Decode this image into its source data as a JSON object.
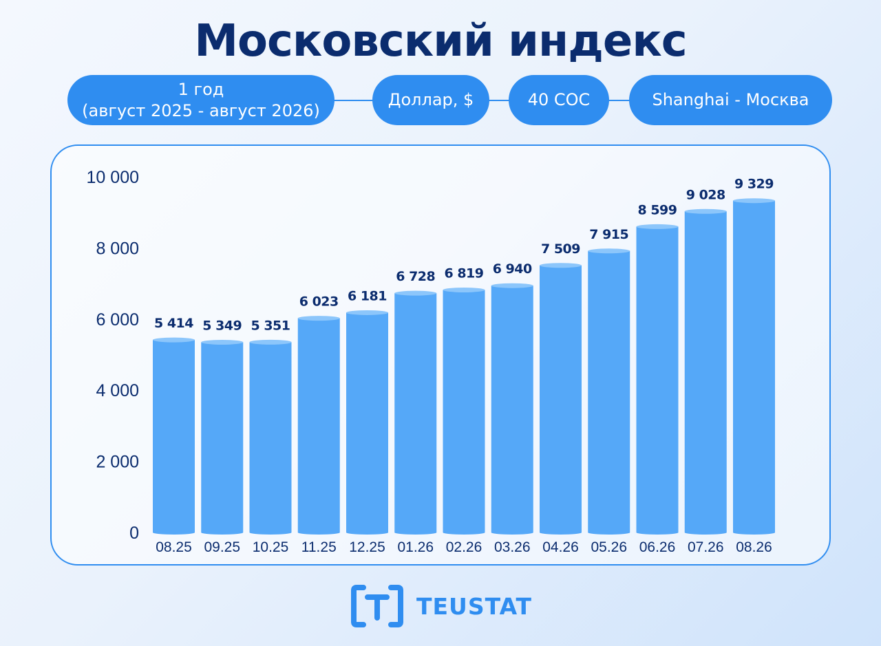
{
  "title": "Московский индекс",
  "filters": [
    {
      "line1": "1 год",
      "line2": "(август 2025 - август 2026)"
    },
    {
      "line1": "Доллар, $",
      "line2": ""
    },
    {
      "line1": "40 COC",
      "line2": ""
    },
    {
      "line1": "Shanghai - Москва",
      "line2": ""
    }
  ],
  "chart_data": {
    "type": "bar",
    "categories": [
      "08.25",
      "09.25",
      "10.25",
      "11.25",
      "12.25",
      "01.26",
      "02.26",
      "03.26",
      "04.26",
      "05.26",
      "06.26",
      "07.26",
      "08.26"
    ],
    "values": [
      5414,
      5349,
      5351,
      6023,
      6181,
      6728,
      6819,
      6940,
      7509,
      7915,
      8599,
      9028,
      9329
    ],
    "value_labels": [
      "5 414",
      "5 349",
      "5 351",
      "6 023",
      "6 181",
      "6 728",
      "6 819",
      "6 940",
      "7 509",
      "7 915",
      "8 599",
      "9 028",
      "9 329"
    ],
    "y_ticks": [
      0,
      2000,
      4000,
      6000,
      8000,
      10000
    ],
    "y_tick_labels": [
      "0",
      "2 000",
      "4 000",
      "6 000",
      "8 000",
      "10 000"
    ],
    "ylim": [
      0,
      10000
    ],
    "xlabel": "",
    "ylabel": "",
    "grid": false,
    "bar_color": "#55a8f8",
    "label_color": "#0b2c6e"
  },
  "logo": {
    "text": "TEUSTAT",
    "icon": "bracket-t-logo-icon",
    "color": "#2f8df0"
  }
}
